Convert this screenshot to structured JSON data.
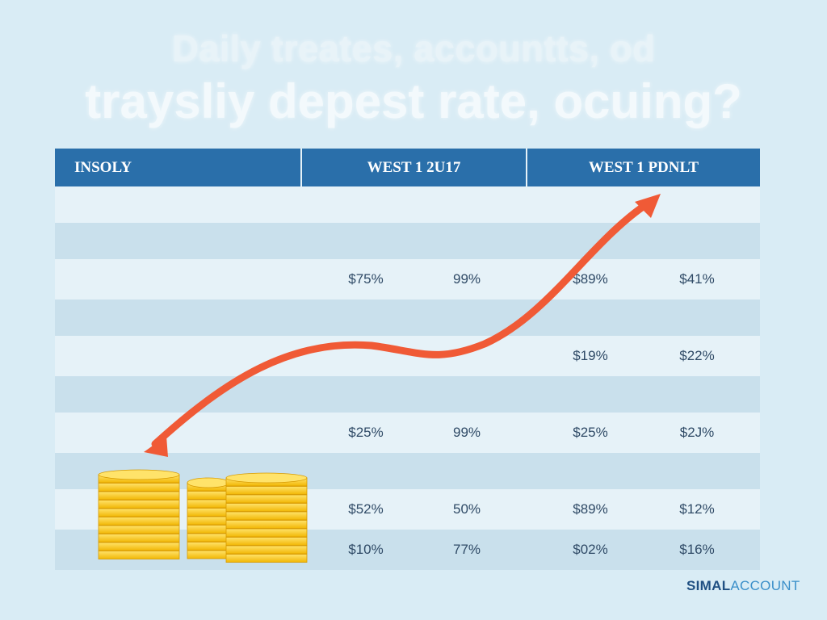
{
  "headline": {
    "line1": "Daily treates, accountts, od",
    "line2": "traysliy depest rate, ocuing?"
  },
  "table": {
    "headers": [
      "INSOLY",
      "WEST 1  2U17",
      "WEST 1  PDNLT"
    ],
    "rows": [
      {
        "values": [
          "",
          "",
          "",
          ""
        ]
      },
      {
        "values": [
          "",
          "",
          "",
          ""
        ]
      },
      {
        "values": [
          "$75%",
          "99%",
          "$89%",
          "$41%"
        ]
      },
      {
        "values": [
          "",
          "",
          "",
          ""
        ]
      },
      {
        "values": [
          "",
          "",
          "$19%",
          "$22%"
        ]
      },
      {
        "values": [
          "",
          "",
          "",
          ""
        ]
      },
      {
        "values": [
          "$25%",
          "99%",
          "$25%",
          "$2J%"
        ]
      },
      {
        "values": [
          "",
          "",
          "",
          ""
        ]
      },
      {
        "values": [
          "$52%",
          "50%",
          "$89%",
          "$12%"
        ]
      },
      {
        "values": [
          "$10%",
          "77%",
          "$02%",
          "$16%"
        ]
      }
    ]
  },
  "decorations": {
    "trend_arrow": {
      "icon": "trend-arrow-icon",
      "color": "#f05a36"
    },
    "coins": {
      "icon": "coin-stack-icon",
      "color": "#f5c518"
    }
  },
  "brand": {
    "part1": "SIMAL",
    "part2": "ACCOUNT"
  }
}
